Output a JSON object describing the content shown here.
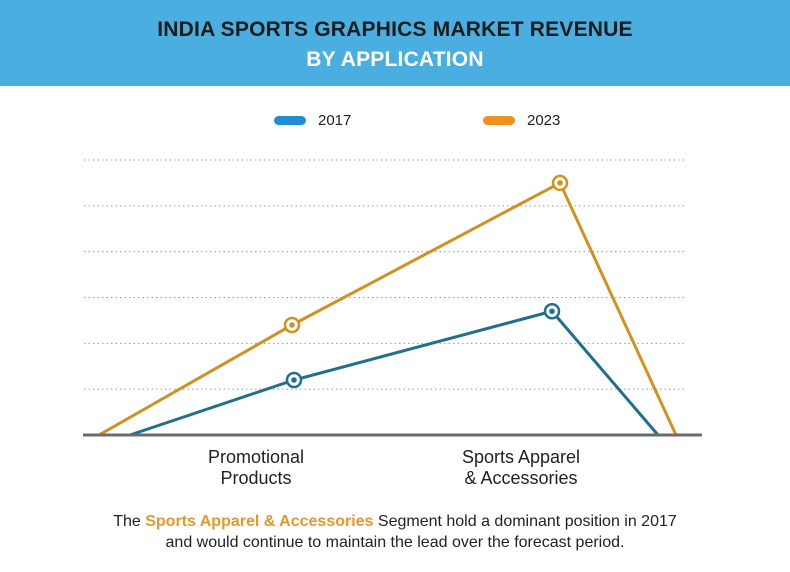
{
  "header": {
    "title_line1": "INDIA SPORTS GRAPHICS MARKET REVENUE",
    "title_line2": "BY APPLICATION"
  },
  "legend": [
    {
      "label": "2017",
      "color": "#1f8fd0"
    },
    {
      "label": "2023",
      "color": "#f0901e"
    }
  ],
  "chart_data": {
    "type": "line",
    "title": "INDIA SPORTS GRAPHICS MARKET REVENUE BY APPLICATION",
    "categories": [
      "Promotional Products",
      "Sports Apparel & Accessories"
    ],
    "series": [
      {
        "name": "2017",
        "values": [
          1.2,
          2.7
        ],
        "color": "#1f6f8f"
      },
      {
        "name": "2023",
        "values": [
          2.4,
          5.5
        ],
        "color": "#d4901e"
      }
    ],
    "ylim": [
      0,
      6
    ],
    "grid": true,
    "legend_position": "top-center"
  },
  "axis": {
    "cat1_line1": "Promotional",
    "cat1_line2": "Products",
    "cat2_line1": "Sports Apparel",
    "cat2_line2": "& Accessories"
  },
  "footer": {
    "prefix": "The ",
    "highlight": "Sports Apparel & Accessories",
    "suffix": " Segment hold a dominant position in 2017",
    "line2": "and would continue to maintain the lead over the forecast period."
  }
}
